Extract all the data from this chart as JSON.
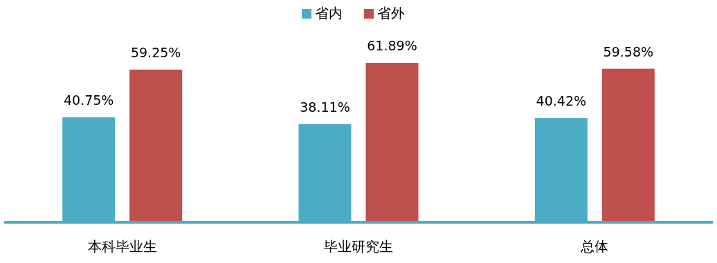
{
  "chart_data": {
    "type": "bar",
    "categories": [
      "本科毕业生",
      "毕业研究生",
      "总体"
    ],
    "series": [
      {
        "name": "省内",
        "color": "#4bacc6",
        "values": [
          40.75,
          38.11,
          40.42
        ],
        "value_labels": [
          "40.75%",
          "38.11%",
          "40.42%"
        ]
      },
      {
        "name": "省外",
        "color": "#c0504d",
        "values": [
          59.25,
          61.89,
          59.58
        ],
        "value_labels": [
          "59.25%",
          "61.89%",
          "59.58%"
        ]
      }
    ],
    "legend": "top"
  }
}
